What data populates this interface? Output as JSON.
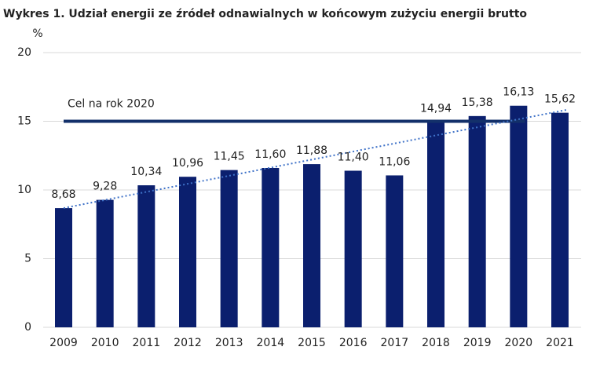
{
  "chart_data": {
    "type": "bar",
    "title": "Wykres 1. Udział energii ze źródeł odnawialnych w końcowym zużyciu energii brutto",
    "y_label": "%",
    "categories": [
      "2009",
      "2010",
      "2011",
      "2012",
      "2013",
      "2014",
      "2015",
      "2016",
      "2017",
      "2018",
      "2019",
      "2020",
      "2021"
    ],
    "values": [
      8.68,
      9.28,
      10.34,
      10.96,
      11.45,
      11.6,
      11.88,
      11.4,
      11.06,
      14.94,
      15.38,
      16.13,
      15.62
    ],
    "value_labels": [
      "8,68",
      "9,28",
      "10,34",
      "10,96",
      "11,45",
      "11,60",
      "11,88",
      "11,40",
      "11,06",
      "14,94",
      "15,38",
      "16,13",
      "15,62"
    ],
    "color": "#0b1f6e",
    "target": {
      "label": "Cel na rok 2020",
      "value": 15,
      "color": "#13306a"
    },
    "trendline": {
      "color": "#3f72c8"
    },
    "ylim": [
      0,
      20
    ],
    "yticks": [
      0,
      5,
      10,
      15,
      20
    ],
    "grid": true
  }
}
